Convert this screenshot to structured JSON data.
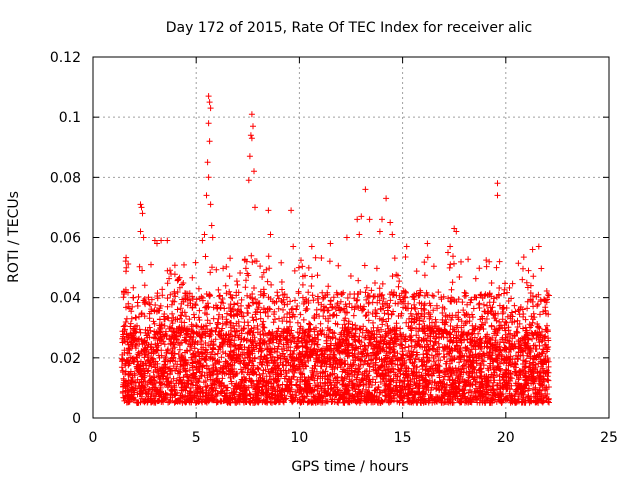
{
  "chart_data": {
    "type": "scatter",
    "title": "Day 172 of 2015, Rate Of TEC Index for receiver alic",
    "xlabel": "GPS time / hours",
    "ylabel": "ROTI / TECUs",
    "xlim": [
      0,
      25
    ],
    "ylim": [
      0,
      0.12
    ],
    "xticks": [
      0,
      5,
      10,
      15,
      20,
      25
    ],
    "yticks": [
      0,
      0.02,
      0.04,
      0.06,
      0.08,
      0.1,
      0.12
    ],
    "xtick_labels": [
      "0",
      "5",
      "10",
      "15",
      "20",
      "25"
    ],
    "ytick_labels": [
      "0",
      "0.02",
      "0.04",
      "0.06",
      "0.08",
      "0.1",
      "0.12"
    ],
    "grid": true,
    "marker": "+",
    "color": "#ff0000",
    "series": [
      {
        "x_range": [
          1.4,
          22.1
        ],
        "typical_y_range": [
          0.005,
          0.03
        ],
        "points": [
          [
            5.6,
            0.107
          ],
          [
            5.65,
            0.105
          ],
          [
            5.7,
            0.103
          ],
          [
            5.6,
            0.098
          ],
          [
            5.65,
            0.092
          ],
          [
            5.55,
            0.085
          ],
          [
            5.6,
            0.08
          ],
          [
            5.5,
            0.074
          ],
          [
            5.7,
            0.071
          ],
          [
            5.75,
            0.064
          ],
          [
            5.8,
            0.06
          ],
          [
            5.4,
            0.061
          ],
          [
            5.3,
            0.059
          ],
          [
            7.7,
            0.101
          ],
          [
            7.75,
            0.097
          ],
          [
            7.65,
            0.094
          ],
          [
            7.7,
            0.093
          ],
          [
            7.6,
            0.087
          ],
          [
            7.8,
            0.082
          ],
          [
            7.55,
            0.079
          ],
          [
            7.85,
            0.07
          ],
          [
            7.45,
            0.052
          ],
          [
            2.3,
            0.071
          ],
          [
            2.35,
            0.07
          ],
          [
            2.4,
            0.068
          ],
          [
            2.3,
            0.062
          ],
          [
            2.45,
            0.06
          ],
          [
            3.0,
            0.059
          ],
          [
            3.3,
            0.059
          ],
          [
            3.6,
            0.059
          ],
          [
            3.1,
            0.058
          ],
          [
            8.5,
            0.069
          ],
          [
            9.6,
            0.069
          ],
          [
            8.6,
            0.061
          ],
          [
            9.7,
            0.057
          ],
          [
            10.6,
            0.057
          ],
          [
            12.8,
            0.066
          ],
          [
            13.0,
            0.067
          ],
          [
            13.2,
            0.076
          ],
          [
            13.4,
            0.066
          ],
          [
            12.9,
            0.061
          ],
          [
            14.2,
            0.073
          ],
          [
            14.0,
            0.066
          ],
          [
            14.4,
            0.065
          ],
          [
            14.5,
            0.061
          ],
          [
            13.9,
            0.062
          ],
          [
            11.5,
            0.058
          ],
          [
            12.3,
            0.06
          ],
          [
            15.2,
            0.057
          ],
          [
            16.2,
            0.058
          ],
          [
            17.5,
            0.063
          ],
          [
            17.6,
            0.062
          ],
          [
            17.3,
            0.057
          ],
          [
            17.2,
            0.055
          ],
          [
            19.6,
            0.078
          ],
          [
            19.6,
            0.074
          ],
          [
            19.7,
            0.052
          ],
          [
            19.55,
            0.05
          ],
          [
            21.3,
            0.056
          ],
          [
            21.6,
            0.057
          ],
          [
            20.8,
            0.046
          ],
          [
            21.1,
            0.049
          ]
        ]
      }
    ]
  }
}
